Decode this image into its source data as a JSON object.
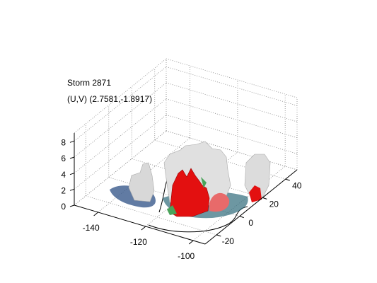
{
  "chart_data": {
    "type": "isosurface3d",
    "title": [
      "Storm 2871",
      "(U,V) (2.7581,-1.8917)"
    ],
    "xlim": [
      -150,
      -95
    ],
    "xticks": [
      -140,
      -120,
      -100
    ],
    "ylim": [
      -30,
      50
    ],
    "yticks": [
      -20,
      0,
      20,
      40
    ],
    "zlim": [
      0,
      9
    ],
    "zticks": [
      0,
      2,
      4,
      6,
      8
    ],
    "grid": true
  }
}
